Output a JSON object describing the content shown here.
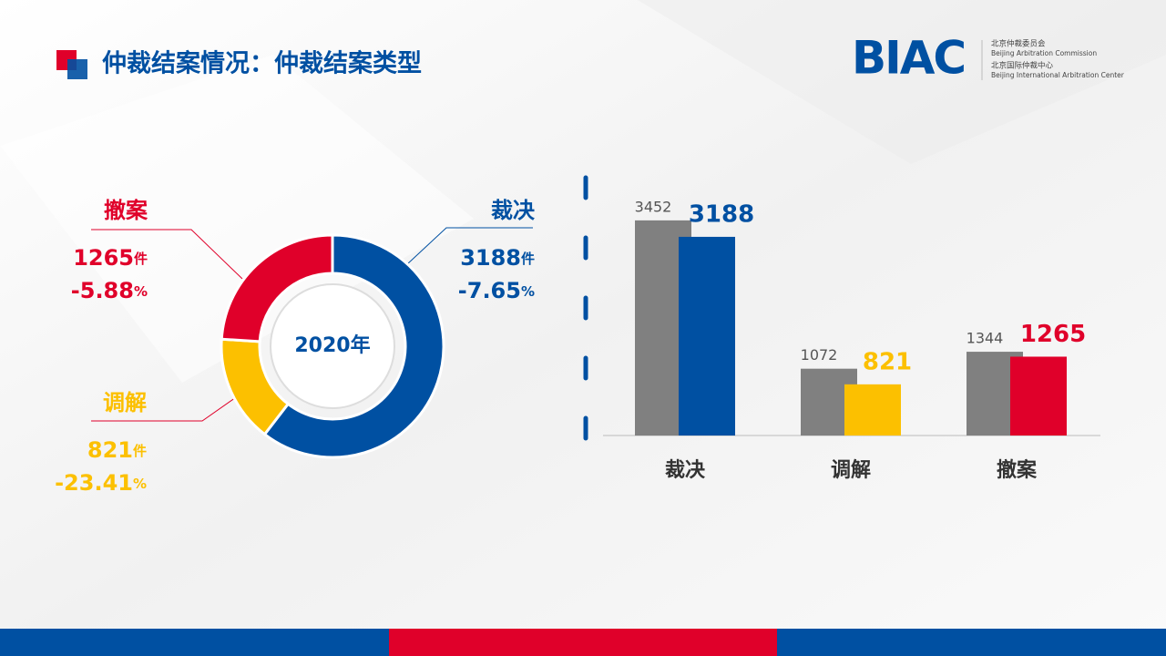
{
  "header": {
    "title": "仲裁结案情况：仲裁结案类型"
  },
  "logo": {
    "mark": "BIAC",
    "lines": [
      "北京仲裁委员会",
      "Beijing Arbitration Commission",
      "北京国际仲裁中心",
      "Beijing International Arbitration Center"
    ]
  },
  "chart_data": [
    {
      "type": "pie",
      "center_label": "2020年",
      "categories": [
        "裁决",
        "调解",
        "撤案"
      ],
      "values": [
        3188,
        821,
        1265
      ],
      "unit": "件",
      "changes": [
        -7.65,
        -23.41,
        -5.88
      ],
      "change_unit": "%",
      "colors": [
        "#0050a2",
        "#fcc000",
        "#e0002a"
      ]
    },
    {
      "type": "bar",
      "categories": [
        "裁决",
        "调解",
        "撤案"
      ],
      "series": [
        {
          "color": "#808080",
          "values": [
            3452,
            1072,
            1344
          ]
        },
        {
          "colors": [
            "#0050a2",
            "#fcc000",
            "#e0002a"
          ],
          "values": [
            3188,
            821,
            1265
          ]
        }
      ],
      "ylim": [
        0,
        4000
      ]
    }
  ]
}
